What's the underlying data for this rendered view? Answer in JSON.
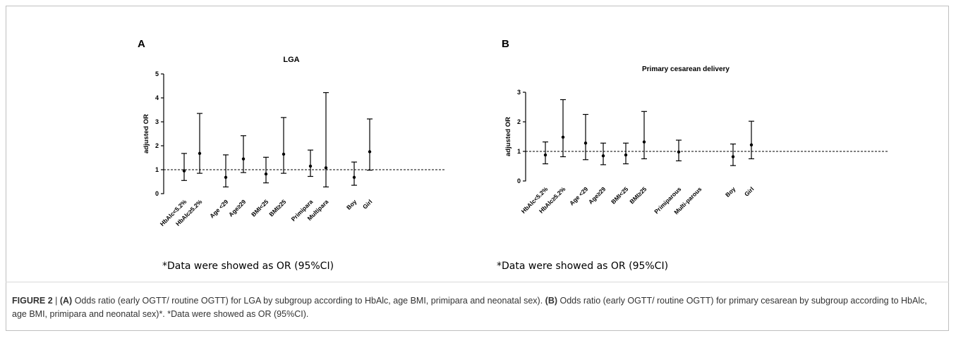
{
  "figure": {
    "caption_label": "FIGURE 2",
    "caption_sep": " | ",
    "caption_parts": [
      {
        "text": "(A)",
        "bold": true
      },
      {
        "text": " Odds ratio (early OGTT/ routine OGTT) for LGA by subgroup according to HbAlc, age BMI, primipara and neonatal sex). ",
        "bold": false
      },
      {
        "text": "(B)",
        "bold": true
      },
      {
        "text": " Odds ratio (early OGTT/ routine OGTT) for primary cesarean by subgroup according to HbAlc, age BMI, primipara and neonatal sex)*. *Data were showed as OR (95%CI).",
        "bold": false
      }
    ],
    "note_a": "*Data were showed as OR (95%CI)",
    "note_b": "*Data were showed as OR (95%CI)"
  },
  "chart_data": [
    {
      "type": "scatter",
      "panel": "A",
      "title": "LGA",
      "ylabel": "adjusted OR",
      "xlabel": "",
      "ylim": [
        0,
        5
      ],
      "yticks": [
        0,
        1,
        2,
        3,
        4,
        5
      ],
      "reference_line": 1,
      "grid": false,
      "categories": [
        "HbAlc<5.2%",
        "HbAlc≥5.2%",
        "Age <29",
        "Age≥29",
        "BMI<25",
        "BMI≥25",
        "Primipara",
        "Multipara",
        "Boy",
        "Girl"
      ],
      "points": [
        {
          "label": "HbAlc<5.2%",
          "or": 0.95,
          "lo": 0.55,
          "hi": 1.68
        },
        {
          "label": "HbAlc≥5.2%",
          "or": 1.68,
          "lo": 0.85,
          "hi": 3.35
        },
        {
          "label": "Age <29",
          "or": 0.68,
          "lo": 0.28,
          "hi": 1.62
        },
        {
          "label": "Age≥29",
          "or": 1.45,
          "lo": 0.88,
          "hi": 2.42
        },
        {
          "label": "BMI<25",
          "or": 0.82,
          "lo": 0.45,
          "hi": 1.52
        },
        {
          "label": "BMI≥25",
          "or": 1.65,
          "lo": 0.85,
          "hi": 3.18
        },
        {
          "label": "Primipara",
          "or": 1.15,
          "lo": 0.72,
          "hi": 1.82
        },
        {
          "label": "Multipara",
          "or": 1.08,
          "lo": 0.28,
          "hi": 4.22
        },
        {
          "label": "Boy",
          "or": 0.68,
          "lo": 0.35,
          "hi": 1.32
        },
        {
          "label": "Girl",
          "or": 1.75,
          "lo": 0.98,
          "hi": 3.12
        }
      ]
    },
    {
      "type": "scatter",
      "panel": "B",
      "title": "Primary cesarean delivery",
      "ylabel": "adjusted OR",
      "xlabel": "",
      "ylim": [
        0,
        3
      ],
      "yticks": [
        0,
        1,
        2,
        3
      ],
      "reference_line": 1,
      "grid": false,
      "categories": [
        "HbAlc<5.2%",
        "HbAlc≥5.2%",
        "Age <29",
        "Age≥29",
        "BMI<25",
        "BMI≥25",
        "Primiparous",
        "Multi-parous",
        "Boy",
        "Girl"
      ],
      "points": [
        {
          "label": "HbAlc<5.2%",
          "or": 0.88,
          "lo": 0.58,
          "hi": 1.32
        },
        {
          "label": "HbAlc≥5.2%",
          "or": 1.48,
          "lo": 0.82,
          "hi": 2.75
        },
        {
          "label": "Age <29",
          "or": 1.28,
          "lo": 0.72,
          "hi": 2.25
        },
        {
          "label": "Age≥29",
          "or": 0.85,
          "lo": 0.55,
          "hi": 1.28
        },
        {
          "label": "BMI<25",
          "or": 0.88,
          "lo": 0.58,
          "hi": 1.28
        },
        {
          "label": "BMI≥25",
          "or": 1.32,
          "lo": 0.75,
          "hi": 2.35
        },
        {
          "label": "Primiparous",
          "or": 0.98,
          "lo": 0.68,
          "hi": 1.38
        },
        {
          "label": "Multi-parous",
          "or": null,
          "lo": null,
          "hi": null
        },
        {
          "label": "Boy",
          "or": 0.82,
          "lo": 0.52,
          "hi": 1.25
        },
        {
          "label": "Girl",
          "or": 1.22,
          "lo": 0.75,
          "hi": 2.02
        }
      ]
    }
  ]
}
